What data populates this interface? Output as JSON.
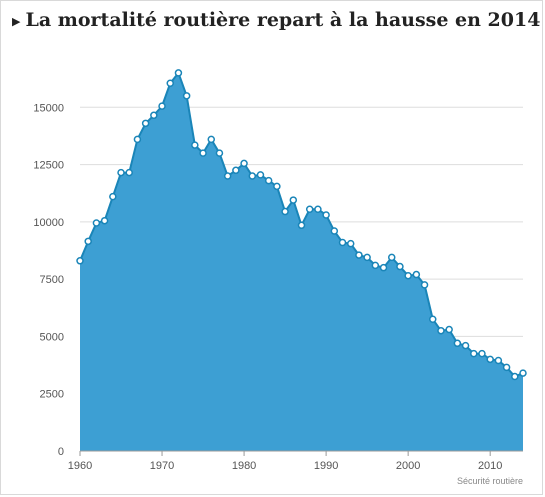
{
  "chart_data": {
    "type": "area",
    "title": "La mortalité routière repart à la hausse en 2014",
    "credit": "Sécurité routière",
    "xlabel": "",
    "ylabel": "",
    "xlim": [
      1960,
      2014
    ],
    "ylim": [
      0,
      17500
    ],
    "y_ticks": [
      0,
      2500,
      5000,
      7500,
      10000,
      12500,
      15000
    ],
    "y_tick_labels": [
      "0",
      "2500",
      "5000",
      "7500",
      "10000",
      "12500",
      "15000"
    ],
    "x_ticks": [
      1960,
      1970,
      1980,
      1990,
      2000,
      2010
    ],
    "x_tick_labels": [
      "1960",
      "1970",
      "1980",
      "1990",
      "2000",
      "2010"
    ],
    "grid": "horizontal",
    "colors": {
      "fill": "#3d9fd3",
      "line": "#1a85b8",
      "marker_fill": "#ffffff",
      "grid": "#dddddd"
    },
    "x": [
      1960,
      1961,
      1962,
      1963,
      1964,
      1965,
      1966,
      1967,
      1968,
      1969,
      1970,
      1971,
      1972,
      1973,
      1974,
      1975,
      1976,
      1977,
      1978,
      1979,
      1980,
      1981,
      1982,
      1983,
      1984,
      1985,
      1986,
      1987,
      1988,
      1989,
      1990,
      1991,
      1992,
      1993,
      1994,
      1995,
      1996,
      1997,
      1998,
      1999,
      2000,
      2001,
      2002,
      2003,
      2004,
      2005,
      2006,
      2007,
      2008,
      2009,
      2010,
      2011,
      2012,
      2013,
      2014
    ],
    "values": [
      8300,
      9150,
      9950,
      10050,
      11100,
      12150,
      12150,
      13600,
      14300,
      14650,
      15050,
      16050,
      16500,
      15500,
      13350,
      13000,
      13600,
      13000,
      12000,
      12250,
      12550,
      12000,
      12050,
      11800,
      11550,
      10450,
      10950,
      9850,
      10550,
      10550,
      10300,
      9600,
      9100,
      9050,
      8550,
      8450,
      8100,
      8000,
      8450,
      8050,
      7650,
      7700,
      7250,
      5750,
      5250,
      5300,
      4700,
      4600,
      4250,
      4250,
      4000,
      3950,
      3650,
      3250,
      3400
    ]
  }
}
